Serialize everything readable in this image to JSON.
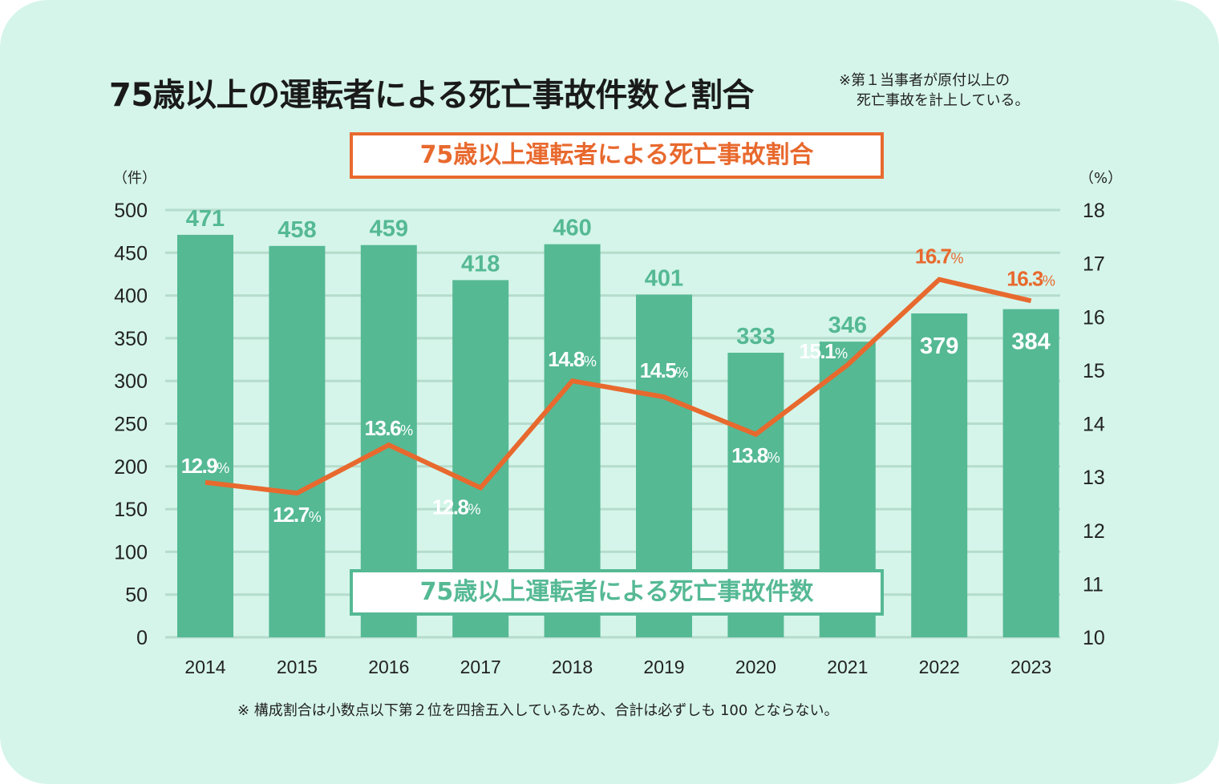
{
  "header": {
    "title": "75歳以上の運転者による死亡事故件数と割合",
    "note_line1": "※第１当事者が原付以上の",
    "note_line2": "死亡事故を計上している。"
  },
  "legend": {
    "rate": "75歳以上運転者による死亡事故割合",
    "count": "75歳以上運転者による死亡事故件数"
  },
  "footnote": "※ 構成割合は小数点以下第２位を四捨五入しているため、合計は必ずしも 100 とならない。",
  "colors": {
    "background": "#d5f5ea",
    "bar": "#55b994",
    "line": "#e8692e",
    "grid": "#b5dccc",
    "text": "#222222"
  },
  "chart_data": {
    "type": "bar+line",
    "title": "75歳以上の運転者による死亡事故件数と割合",
    "categories": [
      "2014",
      "2015",
      "2016",
      "2017",
      "2018",
      "2019",
      "2020",
      "2021",
      "2022",
      "2023"
    ],
    "series": [
      {
        "name": "75歳以上運転者による死亡事故件数",
        "type": "bar",
        "axis": "left",
        "values": [
          471,
          458,
          459,
          418,
          460,
          401,
          333,
          346,
          379,
          384
        ],
        "labels": [
          "471",
          "458",
          "459",
          "418",
          "460",
          "401",
          "333",
          "346",
          "379",
          "384"
        ]
      },
      {
        "name": "75歳以上運転者による死亡事故割合",
        "type": "line",
        "axis": "right",
        "values": [
          12.9,
          12.7,
          13.6,
          12.8,
          14.8,
          14.5,
          13.8,
          15.1,
          16.7,
          16.3
        ],
        "labels": [
          "12.9",
          "12.7",
          "13.6",
          "12.8",
          "14.8",
          "14.5",
          "13.8",
          "15.1",
          "16.7",
          "16.3"
        ],
        "label_suffix": "%"
      }
    ],
    "y_left": {
      "label": "（件）",
      "range": [
        0,
        500
      ],
      "ticks": [
        "0",
        "50",
        "100",
        "150",
        "200",
        "250",
        "300",
        "350",
        "400",
        "450",
        "500"
      ]
    },
    "y_right": {
      "label": "（%）",
      "range": [
        10,
        18
      ],
      "ticks": [
        "10",
        "11",
        "12",
        "13",
        "14",
        "15",
        "16",
        "17",
        "18"
      ]
    },
    "grid": true,
    "legend": "boxed labels near series"
  }
}
